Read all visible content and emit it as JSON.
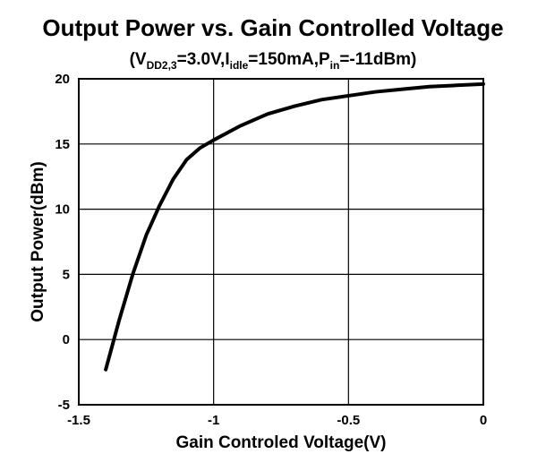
{
  "chart_data": {
    "type": "line",
    "title": "Output Power vs. Gain Controlled Voltage",
    "subtitle": [
      {
        "text": "(V",
        "sub": false
      },
      {
        "text": "DD2,3",
        "sub": true
      },
      {
        "text": "=3.0V,I",
        "sub": false
      },
      {
        "text": "idle",
        "sub": true
      },
      {
        "text": "=150mA,P",
        "sub": false
      },
      {
        "text": "in",
        "sub": true
      },
      {
        "text": "=-11dBm)",
        "sub": false
      }
    ],
    "xlabel": "Gain Controled Voltage(V)",
    "ylabel": "Output Power(dBm)",
    "x": [
      -1.4,
      -1.35,
      -1.3,
      -1.25,
      -1.2,
      -1.15,
      -1.1,
      -1.05,
      -1.0,
      -0.9,
      -0.8,
      -0.7,
      -0.6,
      -0.5,
      -0.4,
      -0.3,
      -0.2,
      -0.1,
      0
    ],
    "series": [
      {
        "color": "#000000",
        "values": [
          -2.3,
          1.5,
          5,
          8,
          10.3,
          12.3,
          13.8,
          14.7,
          15.3,
          16.4,
          17.3,
          17.9,
          18.4,
          18.7,
          19.0,
          19.2,
          19.4,
          19.5,
          19.6
        ]
      }
    ],
    "xlim": [
      -1.5,
      0
    ],
    "xticks": [
      -1.5,
      -1,
      -0.5,
      0
    ],
    "ylim": [
      -5,
      20
    ],
    "yticks": [
      -5,
      0,
      5,
      10,
      15,
      20
    ],
    "grid": true
  }
}
